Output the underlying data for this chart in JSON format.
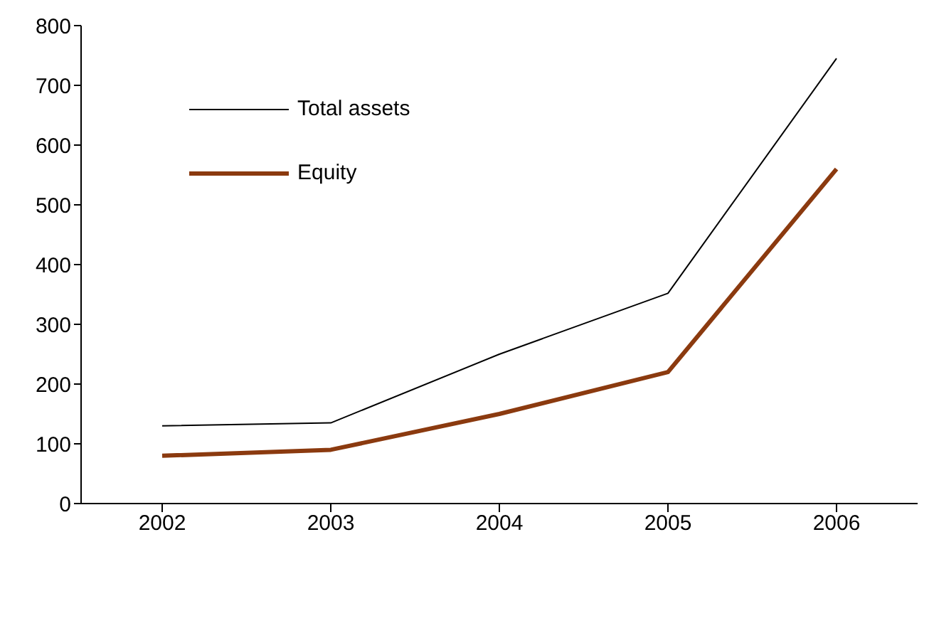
{
  "chart_data": {
    "type": "line",
    "categories": [
      "2002",
      "2003",
      "2004",
      "2005",
      "2006"
    ],
    "series": [
      {
        "name": "Total assets",
        "color": "#000000",
        "values": [
          130,
          135,
          250,
          352,
          745
        ]
      },
      {
        "name": "Equity",
        "color": "#8b3a0f",
        "values": [
          80,
          90,
          150,
          220,
          560
        ]
      }
    ],
    "ylim": [
      0,
      800
    ],
    "yticks": [
      0,
      100,
      200,
      300,
      400,
      500,
      600,
      700,
      800
    ],
    "grid": false,
    "legend": "top left",
    "marker": "none",
    "line_style": "solid"
  }
}
